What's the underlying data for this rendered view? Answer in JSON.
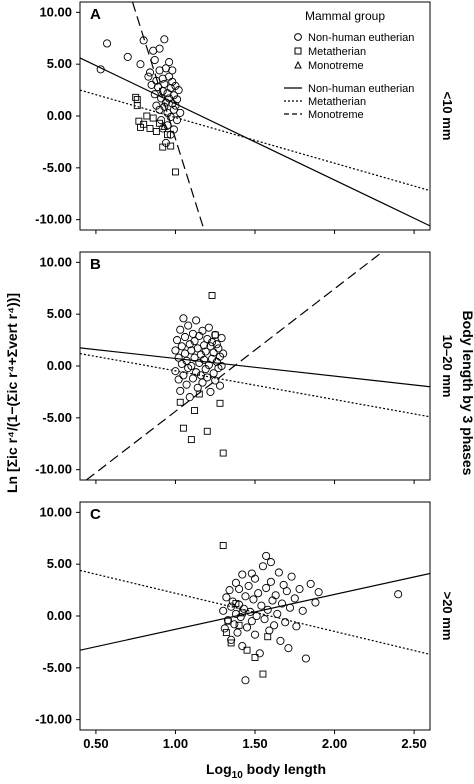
{
  "chart_data": {
    "type": "scatter",
    "xlabel_parts": {
      "pre": "Log",
      "sub": "10",
      "post": " body length"
    },
    "ylabel": "Ln [Σic r⁴/(1−(Σic r⁴+Σvert r⁴))]",
    "right_title": "Body length by 3 phases",
    "xlim": [
      0.4,
      2.6
    ],
    "ylim": [
      -11,
      11
    ],
    "x_ticks": [
      "0.50",
      "1.00",
      "1.50",
      "2.00",
      "2.50"
    ],
    "y_ticks": [
      "10.00",
      "5.00",
      "0.00",
      "-5.00",
      "-10.00"
    ],
    "legend": {
      "title": "Mammal group",
      "markers": [
        {
          "label": "Non-human eutherian",
          "marker": "circle"
        },
        {
          "label": "Metatherian",
          "marker": "square"
        },
        {
          "label": "Monotreme",
          "marker": "triangle"
        }
      ],
      "lines": [
        {
          "label": "Non-human eutherian",
          "style": "solid"
        },
        {
          "label": "Metatherian",
          "style": "dotted"
        },
        {
          "label": "Monotreme",
          "style": "dashed"
        }
      ]
    },
    "panels": [
      {
        "label": "A",
        "phase": "<10 mm",
        "fits": [
          {
            "style": "solid",
            "x": [
              0.4,
              2.6
            ],
            "y": [
              5.6,
              -10.6
            ]
          },
          {
            "style": "dotted",
            "x": [
              0.4,
              2.6
            ],
            "y": [
              2.5,
              -7.2
            ]
          },
          {
            "style": "dashed",
            "x": [
              0.73,
              1.18
            ],
            "y": [
              11,
              -11
            ]
          }
        ],
        "circles": [
          [
            0.57,
            7.0
          ],
          [
            0.53,
            4.5
          ],
          [
            0.7,
            5.7
          ],
          [
            0.78,
            5.0
          ],
          [
            0.8,
            7.3
          ],
          [
            0.83,
            3.8
          ],
          [
            0.84,
            4.2
          ],
          [
            0.85,
            3.0
          ],
          [
            0.86,
            6.3
          ],
          [
            0.87,
            2.1
          ],
          [
            0.87,
            5.4
          ],
          [
            0.88,
            3.4
          ],
          [
            0.88,
            1.0
          ],
          [
            0.89,
            2.8
          ],
          [
            0.9,
            0.6
          ],
          [
            0.9,
            4.4
          ],
          [
            0.9,
            6.5
          ],
          [
            0.91,
            1.7
          ],
          [
            0.91,
            -0.4
          ],
          [
            0.92,
            3.6
          ],
          [
            0.92,
            2.4
          ],
          [
            0.92,
            -1.2
          ],
          [
            0.93,
            0.9
          ],
          [
            0.93,
            7.4
          ],
          [
            0.93,
            3.1
          ],
          [
            0.94,
            1.3
          ],
          [
            0.94,
            -2.6
          ],
          [
            0.94,
            4.6
          ],
          [
            0.95,
            2.2
          ],
          [
            0.95,
            0.3
          ],
          [
            0.95,
            -0.9
          ],
          [
            0.96,
            3.8
          ],
          [
            0.96,
            1.7
          ],
          [
            0.96,
            5.2
          ],
          [
            0.97,
            2.7
          ],
          [
            0.97,
            -0.1
          ],
          [
            0.97,
            -1.8
          ],
          [
            0.98,
            1.2
          ],
          [
            0.98,
            3.3
          ],
          [
            0.98,
            4.4
          ],
          [
            0.99,
            0.6
          ],
          [
            0.99,
            2.0
          ],
          [
            0.99,
            -1.3
          ],
          [
            1.0,
            2.9
          ],
          [
            1.0,
            1.0
          ],
          [
            1.01,
            1.6
          ],
          [
            1.01,
            -0.4
          ],
          [
            1.02,
            2.5
          ],
          [
            1.03,
            0.3
          ]
        ],
        "squares": [
          [
            0.75,
            1.8
          ],
          [
            0.76,
            1.0
          ],
          [
            0.77,
            -0.5
          ],
          [
            0.78,
            -1.1
          ],
          [
            0.8,
            -0.8
          ],
          [
            0.82,
            0.0
          ],
          [
            0.84,
            -1.2
          ],
          [
            0.86,
            -0.2
          ],
          [
            0.88,
            -1.5
          ],
          [
            0.9,
            -0.7
          ],
          [
            0.92,
            -3.0
          ],
          [
            0.95,
            -1.8
          ],
          [
            1.0,
            -5.4
          ],
          [
            0.97,
            -2.9
          ],
          [
            0.76,
            1.6
          ]
        ],
        "triangles": [
          [
            0.93,
            -1.0
          ]
        ]
      },
      {
        "label": "B",
        "phase": "10–20 mm",
        "fits": [
          {
            "style": "solid",
            "x": [
              0.4,
              2.6
            ],
            "y": [
              1.75,
              -2.0
            ]
          },
          {
            "style": "dotted",
            "x": [
              0.4,
              2.6
            ],
            "y": [
              1.2,
              -4.9
            ]
          },
          {
            "style": "dashed",
            "x": [
              0.44,
              2.3
            ],
            "y": [
              -11,
              11
            ]
          }
        ],
        "circles": [
          [
            1.0,
            1.5
          ],
          [
            1.0,
            -0.5
          ],
          [
            1.01,
            2.5
          ],
          [
            1.02,
            0.8
          ],
          [
            1.02,
            -1.3
          ],
          [
            1.03,
            3.5
          ],
          [
            1.03,
            -2.4
          ],
          [
            1.04,
            1.9
          ],
          [
            1.04,
            0.2
          ],
          [
            1.05,
            4.6
          ],
          [
            1.05,
            -0.9
          ],
          [
            1.06,
            2.8
          ],
          [
            1.06,
            1.2
          ],
          [
            1.07,
            -1.8
          ],
          [
            1.07,
            0.5
          ],
          [
            1.08,
            3.9
          ],
          [
            1.08,
            -0.2
          ],
          [
            1.09,
            2.1
          ],
          [
            1.09,
            -3.0
          ],
          [
            1.1,
            1.5
          ],
          [
            1.1,
            0.0
          ],
          [
            1.11,
            3.1
          ],
          [
            1.11,
            -1.2
          ],
          [
            1.12,
            0.8
          ],
          [
            1.12,
            2.4
          ],
          [
            1.13,
            -0.6
          ],
          [
            1.13,
            4.4
          ],
          [
            1.14,
            1.7
          ],
          [
            1.14,
            -2.1
          ],
          [
            1.15,
            0.3
          ],
          [
            1.15,
            2.9
          ],
          [
            1.16,
            -0.9
          ],
          [
            1.16,
            1.1
          ],
          [
            1.17,
            3.4
          ],
          [
            1.17,
            -1.6
          ],
          [
            1.18,
            0.6
          ],
          [
            1.18,
            2.0
          ],
          [
            1.19,
            -0.3
          ],
          [
            1.19,
            1.4
          ],
          [
            1.2,
            2.6
          ],
          [
            1.2,
            -1.1
          ],
          [
            1.21,
            0.1
          ],
          [
            1.21,
            3.7
          ],
          [
            1.22,
            1.9
          ],
          [
            1.22,
            -2.5
          ],
          [
            1.23,
            0.7
          ],
          [
            1.23,
            2.3
          ],
          [
            1.24,
            -0.7
          ],
          [
            1.24,
            1.3
          ],
          [
            1.25,
            3.0
          ],
          [
            1.25,
            -1.4
          ],
          [
            1.26,
            0.4
          ],
          [
            1.26,
            2.1
          ],
          [
            1.27,
            -0.2
          ],
          [
            1.27,
            1.7
          ],
          [
            1.28,
            0.9
          ],
          [
            1.28,
            -1.9
          ],
          [
            1.29,
            2.7
          ],
          [
            1.29,
            0.0
          ],
          [
            1.3,
            1.2
          ]
        ],
        "squares": [
          [
            1.05,
            -6.0
          ],
          [
            1.03,
            -3.5
          ],
          [
            1.12,
            -4.3
          ],
          [
            1.1,
            -7.1
          ],
          [
            1.2,
            -6.3
          ],
          [
            1.23,
            6.8
          ],
          [
            1.3,
            -8.4
          ],
          [
            1.25,
            3.0
          ],
          [
            1.28,
            -3.6
          ],
          [
            1.15,
            -2.7
          ]
        ],
        "triangles": []
      },
      {
        "label": "C",
        "phase": ">20 mm",
        "fits": [
          {
            "style": "solid",
            "x": [
              0.4,
              2.6
            ],
            "y": [
              -3.3,
              4.1
            ]
          },
          {
            "style": "dotted",
            "x": [
              0.4,
              2.6
            ],
            "y": [
              4.4,
              -3.7
            ]
          }
        ],
        "circles": [
          [
            1.3,
            0.5
          ],
          [
            1.31,
            -1.2
          ],
          [
            1.32,
            1.8
          ],
          [
            1.33,
            -0.4
          ],
          [
            1.34,
            2.5
          ],
          [
            1.35,
            0.9
          ],
          [
            1.35,
            -2.3
          ],
          [
            1.36,
            1.4
          ],
          [
            1.37,
            -0.8
          ],
          [
            1.38,
            3.2
          ],
          [
            1.38,
            0.2
          ],
          [
            1.39,
            -1.6
          ],
          [
            1.4,
            1.1
          ],
          [
            1.4,
            2.6
          ],
          [
            1.41,
            -0.1
          ],
          [
            1.42,
            4.0
          ],
          [
            1.42,
            -2.9
          ],
          [
            1.43,
            0.7
          ],
          [
            1.44,
            1.9
          ],
          [
            1.44,
            -6.2
          ],
          [
            1.45,
            -1.1
          ],
          [
            1.46,
            2.9
          ],
          [
            1.47,
            0.4
          ],
          [
            1.48,
            -0.5
          ],
          [
            1.49,
            1.6
          ],
          [
            1.5,
            3.6
          ],
          [
            1.5,
            -1.8
          ],
          [
            1.51,
            0.0
          ],
          [
            1.52,
            2.2
          ],
          [
            1.53,
            -3.6
          ],
          [
            1.54,
            1.0
          ],
          [
            1.55,
            4.8
          ],
          [
            1.56,
            -0.3
          ],
          [
            1.57,
            5.8
          ],
          [
            1.57,
            2.7
          ],
          [
            1.58,
            0.6
          ],
          [
            1.59,
            -1.4
          ],
          [
            1.6,
            3.3
          ],
          [
            1.61,
            1.5
          ],
          [
            1.62,
            -0.9
          ],
          [
            1.63,
            2.0
          ],
          [
            1.64,
            0.2
          ],
          [
            1.65,
            4.2
          ],
          [
            1.66,
            -2.4
          ],
          [
            1.67,
            1.2
          ],
          [
            1.68,
            3.0
          ],
          [
            1.69,
            -0.6
          ],
          [
            1.7,
            2.4
          ],
          [
            1.71,
            -3.1
          ],
          [
            1.72,
            0.8
          ],
          [
            1.73,
            3.8
          ],
          [
            1.75,
            1.7
          ],
          [
            1.76,
            -1.0
          ],
          [
            1.78,
            2.6
          ],
          [
            1.8,
            0.5
          ],
          [
            1.82,
            -4.1
          ],
          [
            1.85,
            3.1
          ],
          [
            1.88,
            1.3
          ],
          [
            1.9,
            2.3
          ],
          [
            2.4,
            2.1
          ],
          [
            1.6,
            5.2
          ],
          [
            1.48,
            4.1
          ]
        ],
        "squares": [
          [
            1.3,
            6.8
          ],
          [
            1.32,
            -1.6
          ],
          [
            1.35,
            -2.6
          ],
          [
            1.38,
            1.2
          ],
          [
            1.4,
            -0.9
          ],
          [
            1.42,
            0.3
          ],
          [
            1.45,
            -3.3
          ],
          [
            1.5,
            -4.0
          ],
          [
            1.55,
            -5.6
          ],
          [
            1.58,
            -2.0
          ],
          [
            1.33,
            -0.5
          ]
        ],
        "triangles": []
      }
    ]
  }
}
